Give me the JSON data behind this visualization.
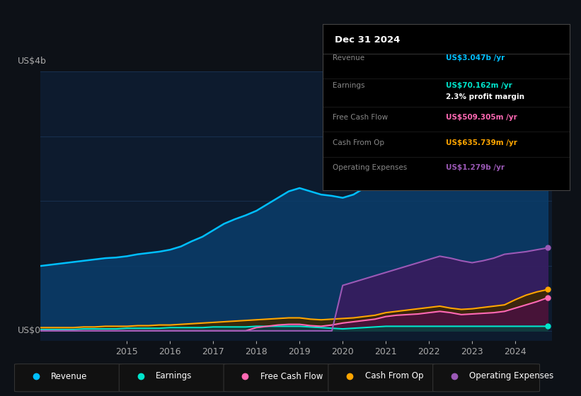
{
  "bg_color": "#0d1117",
  "plot_bg_color": "#0d1b2e",
  "grid_color": "#1e3a5f",
  "title_date": "Dec 31 2024",
  "tooltip": {
    "Revenue": {
      "value": "US$3.047b /yr",
      "color": "#00bfff"
    },
    "Earnings": {
      "value": "US$70.162m /yr",
      "color": "#00e5cc"
    },
    "profit_margin": "2.3% profit margin",
    "Free Cash Flow": {
      "value": "US$509.305m /yr",
      "color": "#ff69b4"
    },
    "Cash From Op": {
      "value": "US$635.739m /yr",
      "color": "#ffa500"
    },
    "Operating Expenses": {
      "value": "US$1.279b /yr",
      "color": "#9b59b6"
    }
  },
  "ylabel": "US$4b",
  "y0label": "US$0",
  "ylim": [
    -0.15,
    4.0
  ],
  "years": [
    2013.0,
    2013.25,
    2013.5,
    2013.75,
    2014.0,
    2014.25,
    2014.5,
    2014.75,
    2015.0,
    2015.25,
    2015.5,
    2015.75,
    2016.0,
    2016.25,
    2016.5,
    2016.75,
    2017.0,
    2017.25,
    2017.5,
    2017.75,
    2018.0,
    2018.25,
    2018.5,
    2018.75,
    2019.0,
    2019.25,
    2019.5,
    2019.75,
    2020.0,
    2020.25,
    2020.5,
    2020.75,
    2021.0,
    2021.25,
    2021.5,
    2021.75,
    2022.0,
    2022.25,
    2022.5,
    2022.75,
    2023.0,
    2023.25,
    2023.5,
    2023.75,
    2024.0,
    2024.25,
    2024.5,
    2024.75
  ],
  "revenue": [
    1.0,
    1.02,
    1.04,
    1.06,
    1.08,
    1.1,
    1.12,
    1.13,
    1.15,
    1.18,
    1.2,
    1.22,
    1.25,
    1.3,
    1.38,
    1.45,
    1.55,
    1.65,
    1.72,
    1.78,
    1.85,
    1.95,
    2.05,
    2.15,
    2.2,
    2.15,
    2.1,
    2.08,
    2.05,
    2.1,
    2.2,
    2.35,
    2.5,
    2.55,
    2.6,
    2.65,
    2.7,
    2.72,
    2.68,
    2.65,
    2.65,
    2.68,
    2.75,
    2.82,
    2.9,
    2.97,
    3.02,
    3.047
  ],
  "earnings": [
    0.02,
    0.02,
    0.02,
    0.02,
    0.03,
    0.03,
    0.03,
    0.03,
    0.04,
    0.04,
    0.04,
    0.04,
    0.05,
    0.05,
    0.05,
    0.05,
    0.06,
    0.06,
    0.06,
    0.06,
    0.07,
    0.07,
    0.07,
    0.07,
    0.07,
    0.06,
    0.05,
    0.04,
    0.03,
    0.04,
    0.05,
    0.06,
    0.07,
    0.07,
    0.07,
    0.07,
    0.07,
    0.07,
    0.07,
    0.07,
    0.07,
    0.07,
    0.07,
    0.07,
    0.07,
    0.07,
    0.07,
    0.07
  ],
  "free_cash_flow": [
    0.0,
    0.0,
    0.0,
    0.0,
    0.0,
    0.0,
    0.0,
    0.0,
    0.0,
    0.0,
    0.0,
    0.0,
    0.0,
    0.0,
    0.0,
    0.0,
    0.0,
    0.0,
    0.0,
    0.0,
    0.05,
    0.07,
    0.09,
    0.1,
    0.1,
    0.08,
    0.07,
    0.09,
    0.12,
    0.14,
    0.16,
    0.18,
    0.22,
    0.24,
    0.25,
    0.26,
    0.28,
    0.3,
    0.28,
    0.25,
    0.26,
    0.27,
    0.28,
    0.3,
    0.35,
    0.4,
    0.45,
    0.51
  ],
  "cash_from_op": [
    0.05,
    0.05,
    0.05,
    0.05,
    0.06,
    0.06,
    0.07,
    0.07,
    0.07,
    0.08,
    0.08,
    0.09,
    0.09,
    0.1,
    0.11,
    0.12,
    0.13,
    0.14,
    0.15,
    0.16,
    0.17,
    0.18,
    0.19,
    0.2,
    0.2,
    0.18,
    0.17,
    0.18,
    0.19,
    0.2,
    0.22,
    0.24,
    0.28,
    0.3,
    0.32,
    0.34,
    0.36,
    0.38,
    0.35,
    0.33,
    0.34,
    0.36,
    0.38,
    0.4,
    0.48,
    0.55,
    0.6,
    0.636
  ],
  "operating_expenses": [
    0.0,
    0.0,
    0.0,
    0.0,
    0.0,
    0.0,
    0.0,
    0.0,
    0.0,
    0.0,
    0.0,
    0.0,
    0.0,
    0.0,
    0.0,
    0.0,
    0.0,
    0.0,
    0.0,
    0.0,
    0.0,
    0.0,
    0.0,
    0.0,
    0.0,
    0.0,
    0.0,
    0.0,
    0.7,
    0.75,
    0.8,
    0.85,
    0.9,
    0.95,
    1.0,
    1.05,
    1.1,
    1.15,
    1.12,
    1.08,
    1.05,
    1.08,
    1.12,
    1.18,
    1.2,
    1.22,
    1.25,
    1.279
  ],
  "revenue_color": "#00bfff",
  "earnings_color": "#00e5cc",
  "fcf_color": "#ff69b4",
  "cashop_color": "#ffa500",
  "opex_color": "#9b59b6",
  "revenue_fill": "#0a3d6b",
  "earnings_fill": "#0a4040",
  "fcf_fill": "#4a1040",
  "cashop_fill": "#3d2800",
  "opex_fill": "#3b1a5e",
  "xticks": [
    2015,
    2016,
    2017,
    2018,
    2019,
    2020,
    2021,
    2022,
    2023,
    2024
  ],
  "legend_items": [
    {
      "label": "Revenue",
      "color": "#00bfff"
    },
    {
      "label": "Earnings",
      "color": "#00e5cc"
    },
    {
      "label": "Free Cash Flow",
      "color": "#ff69b4"
    },
    {
      "label": "Cash From Op",
      "color": "#ffa500"
    },
    {
      "label": "Operating Expenses",
      "color": "#9b59b6"
    }
  ]
}
